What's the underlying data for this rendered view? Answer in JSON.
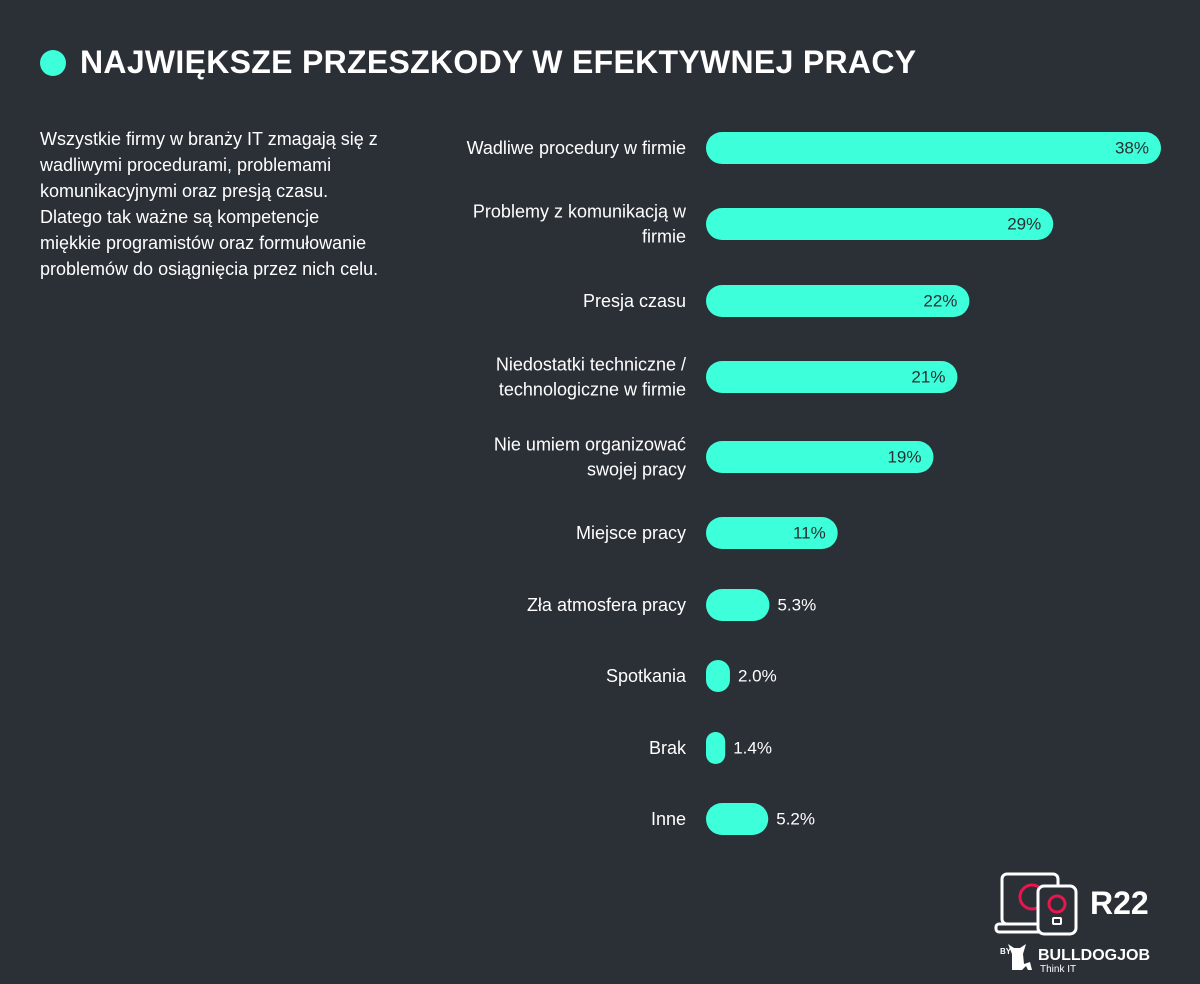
{
  "header": {
    "title": "NAJWIĘKSZE PRZESZKODY W EFEKTYWNEJ PRACY"
  },
  "description": "Wszystkie firmy w branży IT zmagają się z wadliwymi procedurami, problemami komunikacyjnymi oraz presją czasu. Dlatego tak ważne są kompetencje miękkie programistów oraz formułowanie problemów do osiągnięcia przez nich celu.",
  "colors": {
    "background": "#2b2f36",
    "bar": "#3dffd9",
    "accent": "#e8154e"
  },
  "chart_data": {
    "type": "bar",
    "orientation": "horizontal",
    "categories": [
      "Wadliwe procedury w firmie",
      "Problemy z komunikacją w firmie",
      "Presja czasu",
      "Niedostatki techniczne / technologiczne w firmie",
      "Nie umiem organizować swojej pracy",
      "Miejsce pracy",
      "Zła atmosfera pracy",
      "Spotkania",
      "Brak",
      "Inne"
    ],
    "category_lines": [
      [
        "Wadliwe procedury w firmie"
      ],
      [
        "Problemy z komunikacją w",
        "firmie"
      ],
      [
        "Presja czasu"
      ],
      [
        "Niedostatki techniczne /",
        "technologiczne w firmie"
      ],
      [
        "Nie umiem organizować",
        "swojej pracy"
      ],
      [
        "Miejsce pracy"
      ],
      [
        "Zła atmosfera pracy"
      ],
      [
        "Spotkania"
      ],
      [
        "Brak"
      ],
      [
        "Inne"
      ]
    ],
    "values": [
      38,
      29,
      22,
      21,
      19,
      11,
      5.3,
      2.0,
      1.4,
      5.2
    ],
    "value_labels": [
      "38%",
      "29%",
      "22%",
      "21%",
      "19%",
      "11%",
      "5.3%",
      "2.0%",
      "1.4%",
      "5.2%"
    ],
    "xlim": [
      0,
      38
    ],
    "grid": false,
    "legend": "none"
  },
  "logo": {
    "edition": "R22",
    "brand": "BULLDOGJOB",
    "tagline": "Think IT",
    "by": "BY"
  }
}
